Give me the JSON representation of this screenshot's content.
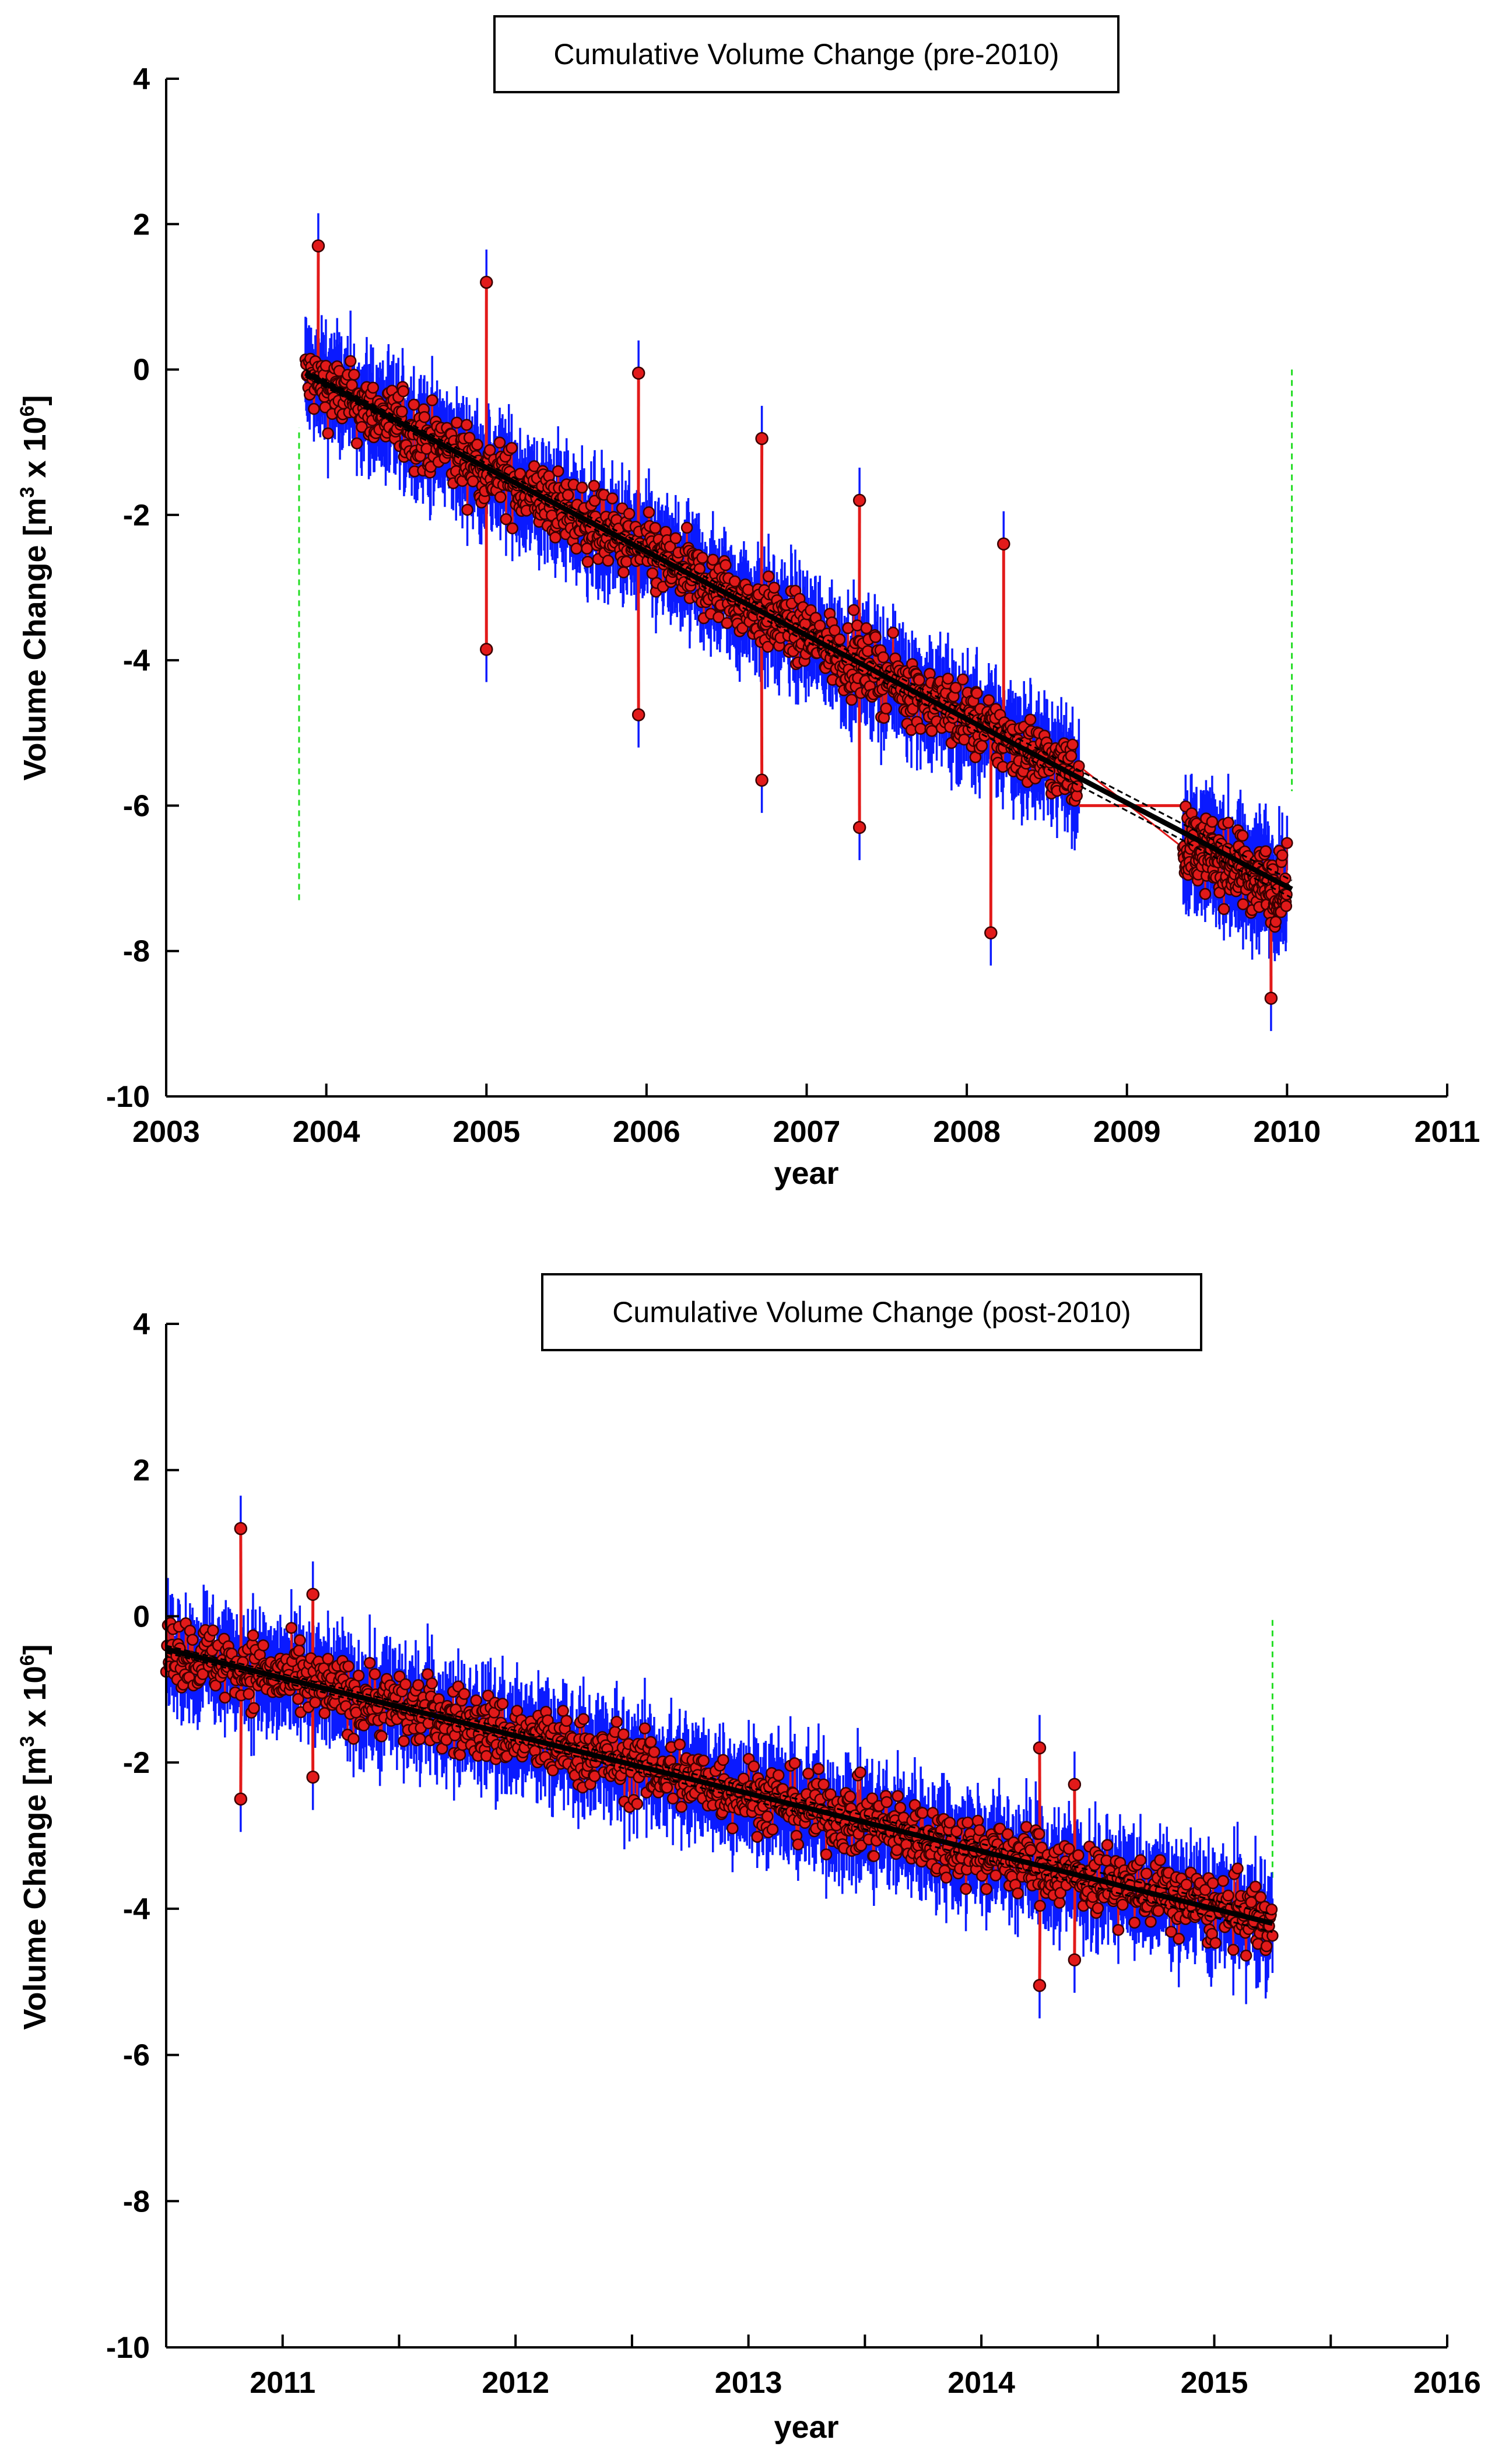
{
  "chart_data": [
    {
      "type": "scatter",
      "title": "Cumulative Volume Change (pre-2010)",
      "xlabel": "year",
      "ylabel": {
        "main": "Volume Change [m",
        "sup1": "3",
        "mid": " x 10",
        "sup2": "6",
        "end": "]"
      },
      "xlim": [
        2003,
        2011
      ],
      "ylim": [
        -10,
        4
      ],
      "xticks": [
        2003,
        2004,
        2005,
        2006,
        2007,
        2008,
        2009,
        2010,
        2011
      ],
      "yticks": [
        -10,
        -8,
        -6,
        -4,
        -2,
        0,
        2,
        4
      ],
      "segments": [
        {
          "x_start": 2003.87,
          "x_end": 2008.7,
          "trend_start": -0.1,
          "trend_end": -5.6,
          "count": 1100
        },
        {
          "x_start": 2009.35,
          "x_end": 2010.0,
          "trend_start": -6.5,
          "trend_end": -7.2,
          "count": 240
        }
      ],
      "gap_line": {
        "x": [
          2008.7,
          2009.35
        ],
        "y": [
          -6.0,
          -6.0
        ]
      },
      "trend_line": {
        "x": [
          2003.87,
          2010.03
        ],
        "y": [
          -0.05,
          -7.15
        ]
      },
      "outliers": [
        {
          "x": 2003.95,
          "y": 1.7
        },
        {
          "x": 2005.0,
          "y": 1.2
        },
        {
          "x": 2005.0,
          "y": -3.85
        },
        {
          "x": 2005.95,
          "y": -0.05
        },
        {
          "x": 2005.95,
          "y": -4.75
        },
        {
          "x": 2006.72,
          "y": -0.95
        },
        {
          "x": 2006.72,
          "y": -5.65
        },
        {
          "x": 2007.33,
          "y": -1.8
        },
        {
          "x": 2007.33,
          "y": -6.3
        },
        {
          "x": 2008.23,
          "y": -2.4
        },
        {
          "x": 2008.15,
          "y": -7.75
        },
        {
          "x": 2009.9,
          "y": -8.65
        }
      ],
      "verticals": [
        {
          "x": 2003.83,
          "y_from": -7.3,
          "y_to": -0.8
        },
        {
          "x": 2010.03,
          "y_from": 0.0,
          "y_to": -5.8
        }
      ],
      "series": [
        {
          "name": "error bars",
          "color": "#0a1aff"
        },
        {
          "name": "observations",
          "color": "#e21a1a"
        },
        {
          "name": "linear fit",
          "color": "#000000"
        }
      ]
    },
    {
      "type": "scatter",
      "title": "Cumulative Volume Change (post-2010)",
      "xlabel": "year",
      "ylabel": {
        "main": "Volume Change [m",
        "sup1": "3",
        "mid": " x 10",
        "sup2": "6",
        "end": "]"
      },
      "xlim": [
        2010.5,
        2016
      ],
      "ylim": [
        -10,
        4
      ],
      "xticks": [
        2011,
        2012,
        2013,
        2014,
        2015,
        2016
      ],
      "minor_xticks": [
        2011.5,
        2012.5,
        2013.5,
        2014.5,
        2015.5
      ],
      "yticks": [
        -10,
        -8,
        -6,
        -4,
        -2,
        0,
        2,
        4
      ],
      "segments": [
        {
          "x_start": 2010.5,
          "x_end": 2015.25,
          "trend_start": -0.45,
          "trend_end": -4.2,
          "count": 1300
        }
      ],
      "trend_line": {
        "x": [
          2010.5,
          2015.25
        ],
        "y": [
          -0.45,
          -4.2
        ]
      },
      "outliers": [
        {
          "x": 2010.82,
          "y": 1.2
        },
        {
          "x": 2010.82,
          "y": -2.5
        },
        {
          "x": 2011.13,
          "y": 0.3
        },
        {
          "x": 2011.13,
          "y": -2.2
        },
        {
          "x": 2014.25,
          "y": -1.8
        },
        {
          "x": 2014.25,
          "y": -5.05
        },
        {
          "x": 2014.4,
          "y": -2.3
        },
        {
          "x": 2014.4,
          "y": -4.7
        }
      ],
      "verticals": [
        {
          "x": 2015.25,
          "y_from": -0.05,
          "y_to": -3.6
        }
      ],
      "series": [
        {
          "name": "error bars",
          "color": "#0a1aff"
        },
        {
          "name": "observations",
          "color": "#e21a1a"
        },
        {
          "name": "linear fit",
          "color": "#000000"
        }
      ]
    }
  ]
}
